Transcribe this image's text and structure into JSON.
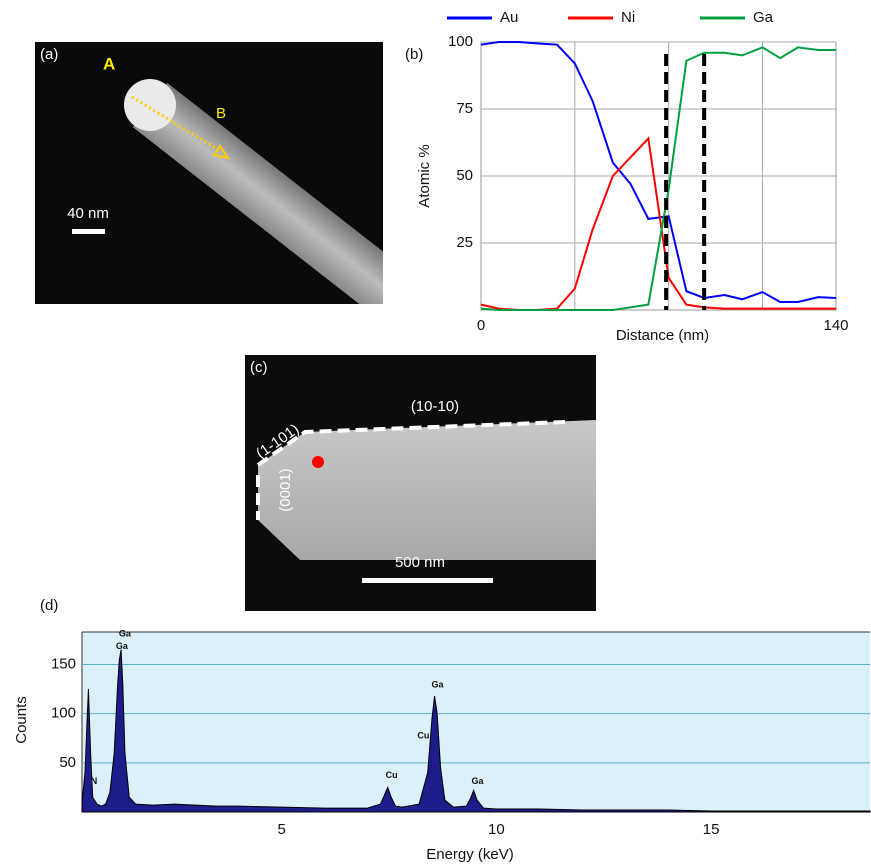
{
  "panels": {
    "a": {
      "label": "(a)",
      "marks": [
        "A",
        "B"
      ],
      "scale_bar": "40 nm"
    },
    "b": {
      "label": "(b)"
    },
    "c": {
      "label": "(c)",
      "facets": [
        "(10-10)",
        "(1-101)",
        "(0001)"
      ],
      "scale_bar": "500 nm"
    },
    "d": {
      "label": "(d)"
    }
  },
  "chart_data": [
    {
      "type": "line",
      "x_label": "Distance (nm)",
      "y_label": "Atomic %",
      "xlim": [
        0,
        140
      ],
      "ylim": [
        0,
        100
      ],
      "xticks": [
        0,
        140
      ],
      "yticks": [
        25,
        50,
        75,
        100
      ],
      "xgrid": [
        37,
        74,
        111
      ],
      "grid": true,
      "vlines": [
        73,
        88
      ],
      "x": [
        0,
        7,
        15,
        22,
        30,
        37,
        44,
        52,
        59,
        66,
        74,
        81,
        88,
        96,
        103,
        111,
        118,
        125,
        133,
        140
      ],
      "series": [
        {
          "name": "Au",
          "color": "#0000ff",
          "values": [
            99,
            100,
            100,
            99.5,
            99,
            92,
            78,
            55,
            47,
            34,
            35,
            7,
            4.5,
            5.6,
            4,
            6.7,
            3,
            3,
            4.8,
            4.5
          ]
        },
        {
          "name": "Ni",
          "color": "#ff0000",
          "values": [
            2,
            0.5,
            0,
            0,
            0.5,
            8,
            30,
            50,
            57,
            64,
            12,
            2,
            1,
            0.5,
            0.5,
            0.5,
            0.5,
            0.5,
            0.5,
            0.5
          ]
        },
        {
          "name": "Ga",
          "color": "#00a040",
          "values": [
            0.5,
            0,
            0,
            0,
            0,
            0,
            0,
            0,
            1,
            2,
            45,
            93,
            96,
            96,
            95,
            98,
            94,
            98,
            97,
            97
          ]
        }
      ]
    },
    {
      "type": "area",
      "x_label": "Energy (keV)",
      "y_label": "Counts",
      "xlim": [
        0.35,
        18.7
      ],
      "ylim": [
        0,
        183
      ],
      "xticks": [
        5,
        10,
        15
      ],
      "yticks": [
        50,
        100,
        150
      ],
      "grid": true,
      "color": "#1c1c8a",
      "x": [
        0.35,
        0.42,
        0.47,
        0.5,
        0.55,
        0.6,
        0.7,
        0.8,
        0.9,
        1.0,
        1.1,
        1.18,
        1.22,
        1.26,
        1.3,
        1.35,
        1.45,
        1.6,
        2,
        2.5,
        3,
        3.5,
        4,
        5,
        6,
        7,
        7.3,
        7.4,
        7.47,
        7.55,
        7.65,
        7.8,
        8.2,
        8.4,
        8.5,
        8.56,
        8.62,
        8.7,
        8.8,
        9.0,
        9.3,
        9.4,
        9.47,
        9.55,
        9.7,
        10,
        11,
        12,
        13,
        14,
        15,
        16,
        17,
        18,
        18.7
      ],
      "values": [
        10,
        40,
        95,
        125,
        60,
        15,
        8,
        6,
        8,
        20,
        60,
        130,
        155,
        165,
        130,
        60,
        15,
        8,
        7,
        8,
        7,
        6,
        6,
        5,
        4,
        4,
        8,
        18,
        25,
        15,
        6,
        5,
        8,
        40,
        95,
        118,
        100,
        45,
        12,
        5,
        6,
        14,
        22,
        12,
        4,
        3,
        3,
        2,
        2,
        2,
        1,
        1,
        1,
        1,
        1
      ],
      "annotations": [
        {
          "text": "N",
          "x": 0.63,
          "y": 31
        },
        {
          "text": "Ga",
          "x": 1.35,
          "y": 181
        },
        {
          "text": "Ga",
          "x": 1.28,
          "y": 168
        },
        {
          "text": "Cu",
          "x": 7.56,
          "y": 37
        },
        {
          "text": "Cu",
          "x": 8.3,
          "y": 77
        },
        {
          "text": "Ga",
          "x": 8.63,
          "y": 129
        },
        {
          "text": "Ga",
          "x": 9.56,
          "y": 31
        }
      ]
    }
  ]
}
